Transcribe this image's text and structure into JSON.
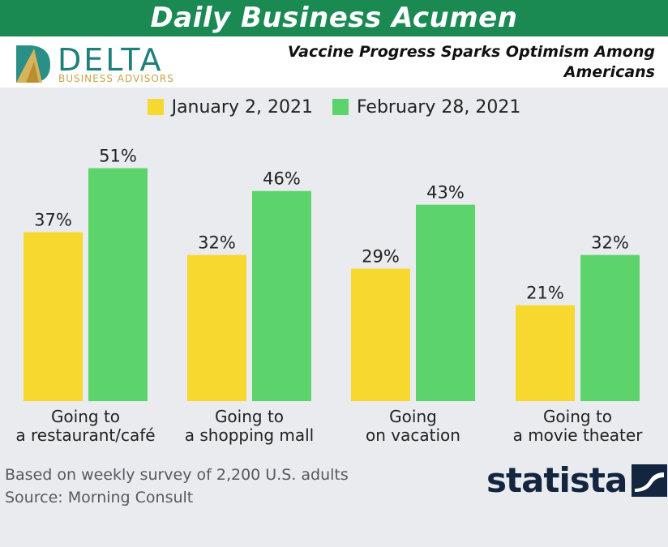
{
  "banner": {
    "title": "Daily Business Acumen"
  },
  "logo": {
    "word": "DELTA",
    "sub": "BUSINESS ADVISORS"
  },
  "headline": "Vaccine Progress Sparks Optimism Among Americans",
  "colors": {
    "series1": "#f7d82f",
    "series2": "#5dd46b",
    "banner": "#1a8a52"
  },
  "chart_data": {
    "type": "bar",
    "categories": [
      [
        "Going to",
        "a restaurant/café"
      ],
      [
        "Going to",
        "a shopping mall"
      ],
      [
        "Going",
        "on vacation"
      ],
      [
        "Going to",
        "a movie theater"
      ]
    ],
    "series": [
      {
        "name": "January 2, 2021",
        "values": [
          37,
          32,
          29,
          21
        ]
      },
      {
        "name": "February 28, 2021",
        "values": [
          51,
          46,
          43,
          32
        ]
      }
    ],
    "value_suffix": "%",
    "ylim": [
      0,
      55
    ],
    "legend": "top-center",
    "grid": false
  },
  "footnote": {
    "line1": "Based on weekly survey of 2,200 U.S. adults",
    "line2": "Source: Morning Consult"
  },
  "brand": {
    "name": "statista",
    "icon": "statista-logo-icon"
  }
}
